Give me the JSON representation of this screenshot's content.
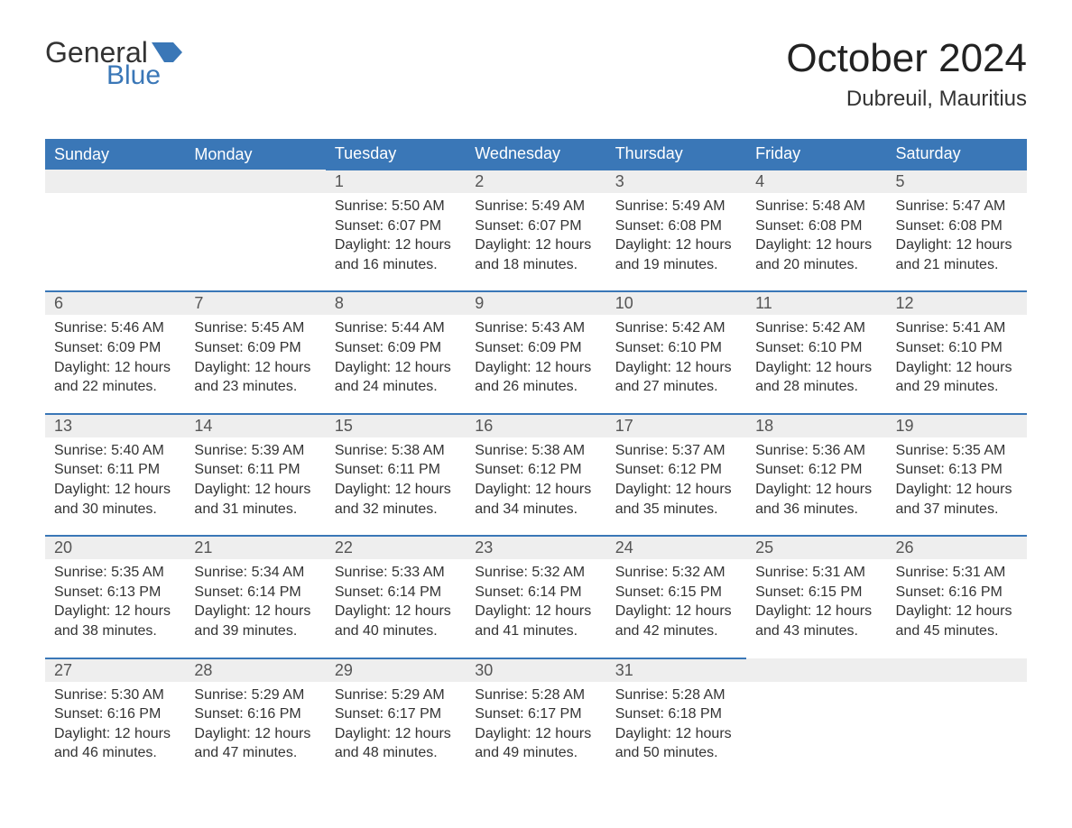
{
  "logo": {
    "word1": "General",
    "word2": "Blue"
  },
  "title": "October 2024",
  "location": "Dubreuil, Mauritius",
  "colors": {
    "brand_blue": "#3a77b7",
    "header_bg": "#3a77b7",
    "header_text": "#ffffff",
    "daynum_bg": "#eeeeee",
    "daynum_border": "#3a77b7",
    "text": "#333333",
    "page_bg": "#ffffff"
  },
  "dayHeaders": [
    "Sunday",
    "Monday",
    "Tuesday",
    "Wednesday",
    "Thursday",
    "Friday",
    "Saturday"
  ],
  "weeks": [
    {
      "days": [
        {
          "num": "",
          "sunrise": "",
          "sunset": "",
          "daylight1": "",
          "daylight2": ""
        },
        {
          "num": "",
          "sunrise": "",
          "sunset": "",
          "daylight1": "",
          "daylight2": ""
        },
        {
          "num": "1",
          "sunrise": "Sunrise: 5:50 AM",
          "sunset": "Sunset: 6:07 PM",
          "daylight1": "Daylight: 12 hours",
          "daylight2": "and 16 minutes."
        },
        {
          "num": "2",
          "sunrise": "Sunrise: 5:49 AM",
          "sunset": "Sunset: 6:07 PM",
          "daylight1": "Daylight: 12 hours",
          "daylight2": "and 18 minutes."
        },
        {
          "num": "3",
          "sunrise": "Sunrise: 5:49 AM",
          "sunset": "Sunset: 6:08 PM",
          "daylight1": "Daylight: 12 hours",
          "daylight2": "and 19 minutes."
        },
        {
          "num": "4",
          "sunrise": "Sunrise: 5:48 AM",
          "sunset": "Sunset: 6:08 PM",
          "daylight1": "Daylight: 12 hours",
          "daylight2": "and 20 minutes."
        },
        {
          "num": "5",
          "sunrise": "Sunrise: 5:47 AM",
          "sunset": "Sunset: 6:08 PM",
          "daylight1": "Daylight: 12 hours",
          "daylight2": "and 21 minutes."
        }
      ]
    },
    {
      "days": [
        {
          "num": "6",
          "sunrise": "Sunrise: 5:46 AM",
          "sunset": "Sunset: 6:09 PM",
          "daylight1": "Daylight: 12 hours",
          "daylight2": "and 22 minutes."
        },
        {
          "num": "7",
          "sunrise": "Sunrise: 5:45 AM",
          "sunset": "Sunset: 6:09 PM",
          "daylight1": "Daylight: 12 hours",
          "daylight2": "and 23 minutes."
        },
        {
          "num": "8",
          "sunrise": "Sunrise: 5:44 AM",
          "sunset": "Sunset: 6:09 PM",
          "daylight1": "Daylight: 12 hours",
          "daylight2": "and 24 minutes."
        },
        {
          "num": "9",
          "sunrise": "Sunrise: 5:43 AM",
          "sunset": "Sunset: 6:09 PM",
          "daylight1": "Daylight: 12 hours",
          "daylight2": "and 26 minutes."
        },
        {
          "num": "10",
          "sunrise": "Sunrise: 5:42 AM",
          "sunset": "Sunset: 6:10 PM",
          "daylight1": "Daylight: 12 hours",
          "daylight2": "and 27 minutes."
        },
        {
          "num": "11",
          "sunrise": "Sunrise: 5:42 AM",
          "sunset": "Sunset: 6:10 PM",
          "daylight1": "Daylight: 12 hours",
          "daylight2": "and 28 minutes."
        },
        {
          "num": "12",
          "sunrise": "Sunrise: 5:41 AM",
          "sunset": "Sunset: 6:10 PM",
          "daylight1": "Daylight: 12 hours",
          "daylight2": "and 29 minutes."
        }
      ]
    },
    {
      "days": [
        {
          "num": "13",
          "sunrise": "Sunrise: 5:40 AM",
          "sunset": "Sunset: 6:11 PM",
          "daylight1": "Daylight: 12 hours",
          "daylight2": "and 30 minutes."
        },
        {
          "num": "14",
          "sunrise": "Sunrise: 5:39 AM",
          "sunset": "Sunset: 6:11 PM",
          "daylight1": "Daylight: 12 hours",
          "daylight2": "and 31 minutes."
        },
        {
          "num": "15",
          "sunrise": "Sunrise: 5:38 AM",
          "sunset": "Sunset: 6:11 PM",
          "daylight1": "Daylight: 12 hours",
          "daylight2": "and 32 minutes."
        },
        {
          "num": "16",
          "sunrise": "Sunrise: 5:38 AM",
          "sunset": "Sunset: 6:12 PM",
          "daylight1": "Daylight: 12 hours",
          "daylight2": "and 34 minutes."
        },
        {
          "num": "17",
          "sunrise": "Sunrise: 5:37 AM",
          "sunset": "Sunset: 6:12 PM",
          "daylight1": "Daylight: 12 hours",
          "daylight2": "and 35 minutes."
        },
        {
          "num": "18",
          "sunrise": "Sunrise: 5:36 AM",
          "sunset": "Sunset: 6:12 PM",
          "daylight1": "Daylight: 12 hours",
          "daylight2": "and 36 minutes."
        },
        {
          "num": "19",
          "sunrise": "Sunrise: 5:35 AM",
          "sunset": "Sunset: 6:13 PM",
          "daylight1": "Daylight: 12 hours",
          "daylight2": "and 37 minutes."
        }
      ]
    },
    {
      "days": [
        {
          "num": "20",
          "sunrise": "Sunrise: 5:35 AM",
          "sunset": "Sunset: 6:13 PM",
          "daylight1": "Daylight: 12 hours",
          "daylight2": "and 38 minutes."
        },
        {
          "num": "21",
          "sunrise": "Sunrise: 5:34 AM",
          "sunset": "Sunset: 6:14 PM",
          "daylight1": "Daylight: 12 hours",
          "daylight2": "and 39 minutes."
        },
        {
          "num": "22",
          "sunrise": "Sunrise: 5:33 AM",
          "sunset": "Sunset: 6:14 PM",
          "daylight1": "Daylight: 12 hours",
          "daylight2": "and 40 minutes."
        },
        {
          "num": "23",
          "sunrise": "Sunrise: 5:32 AM",
          "sunset": "Sunset: 6:14 PM",
          "daylight1": "Daylight: 12 hours",
          "daylight2": "and 41 minutes."
        },
        {
          "num": "24",
          "sunrise": "Sunrise: 5:32 AM",
          "sunset": "Sunset: 6:15 PM",
          "daylight1": "Daylight: 12 hours",
          "daylight2": "and 42 minutes."
        },
        {
          "num": "25",
          "sunrise": "Sunrise: 5:31 AM",
          "sunset": "Sunset: 6:15 PM",
          "daylight1": "Daylight: 12 hours",
          "daylight2": "and 43 minutes."
        },
        {
          "num": "26",
          "sunrise": "Sunrise: 5:31 AM",
          "sunset": "Sunset: 6:16 PM",
          "daylight1": "Daylight: 12 hours",
          "daylight2": "and 45 minutes."
        }
      ]
    },
    {
      "days": [
        {
          "num": "27",
          "sunrise": "Sunrise: 5:30 AM",
          "sunset": "Sunset: 6:16 PM",
          "daylight1": "Daylight: 12 hours",
          "daylight2": "and 46 minutes."
        },
        {
          "num": "28",
          "sunrise": "Sunrise: 5:29 AM",
          "sunset": "Sunset: 6:16 PM",
          "daylight1": "Daylight: 12 hours",
          "daylight2": "and 47 minutes."
        },
        {
          "num": "29",
          "sunrise": "Sunrise: 5:29 AM",
          "sunset": "Sunset: 6:17 PM",
          "daylight1": "Daylight: 12 hours",
          "daylight2": "and 48 minutes."
        },
        {
          "num": "30",
          "sunrise": "Sunrise: 5:28 AM",
          "sunset": "Sunset: 6:17 PM",
          "daylight1": "Daylight: 12 hours",
          "daylight2": "and 49 minutes."
        },
        {
          "num": "31",
          "sunrise": "Sunrise: 5:28 AM",
          "sunset": "Sunset: 6:18 PM",
          "daylight1": "Daylight: 12 hours",
          "daylight2": "and 50 minutes."
        },
        {
          "num": "",
          "sunrise": "",
          "sunset": "",
          "daylight1": "",
          "daylight2": ""
        },
        {
          "num": "",
          "sunrise": "",
          "sunset": "",
          "daylight1": "",
          "daylight2": ""
        }
      ]
    }
  ]
}
